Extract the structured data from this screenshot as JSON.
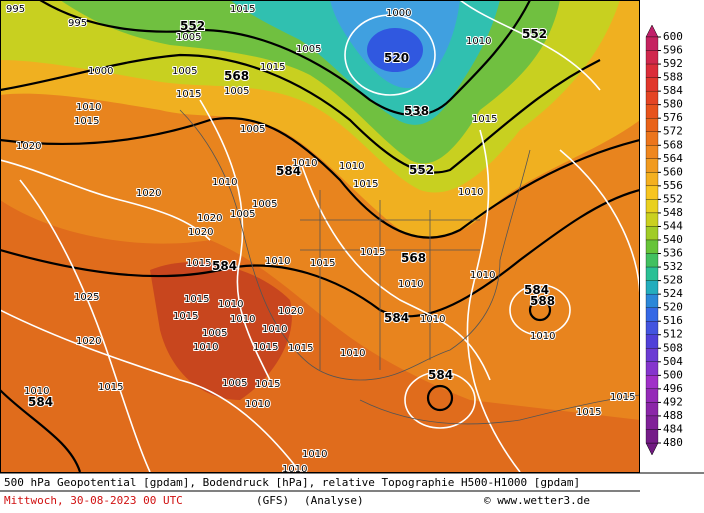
{
  "colorbar": {
    "labels": [
      600,
      596,
      592,
      588,
      584,
      580,
      576,
      572,
      568,
      564,
      560,
      556,
      552,
      548,
      544,
      540,
      536,
      532,
      528,
      524,
      520,
      516,
      512,
      508,
      504,
      500,
      496,
      492,
      488,
      484,
      480
    ]
  },
  "map_labels": [
    995,
    995,
    552,
    1015,
    1005,
    1000,
    520,
    552,
    1010,
    1000,
    1005,
    568,
    1015,
    1005,
    1015,
    1005,
    538,
    1010,
    1015,
    1005,
    1015,
    1020,
    584,
    1010,
    1010,
    552,
    1015,
    1020,
    1010,
    1005,
    1010,
    1005,
    1020,
    1020,
    584,
    1015,
    1010,
    1015,
    568,
    1015,
    1010,
    1010,
    1025,
    1015,
    1010,
    1020,
    584,
    588,
    584,
    1010,
    1015,
    1010,
    1010,
    1005,
    1020,
    1010,
    1015,
    1015,
    1010,
    1010,
    1005,
    1015,
    1015,
    1010,
    584,
    584,
    1010,
    1015,
    1015,
    1010,
    1010
  ],
  "footer": {
    "description": "500 hPa Geopotential [gpdam], Bodendruck [hPa], relative Topographie H500-H1000 [gpdam]",
    "date": "Mittwoch, 30-08-2023  00 UTC",
    "model": "(GFS)",
    "analysis": "(Analyse)",
    "copyright": "© www.wetter3.de"
  }
}
